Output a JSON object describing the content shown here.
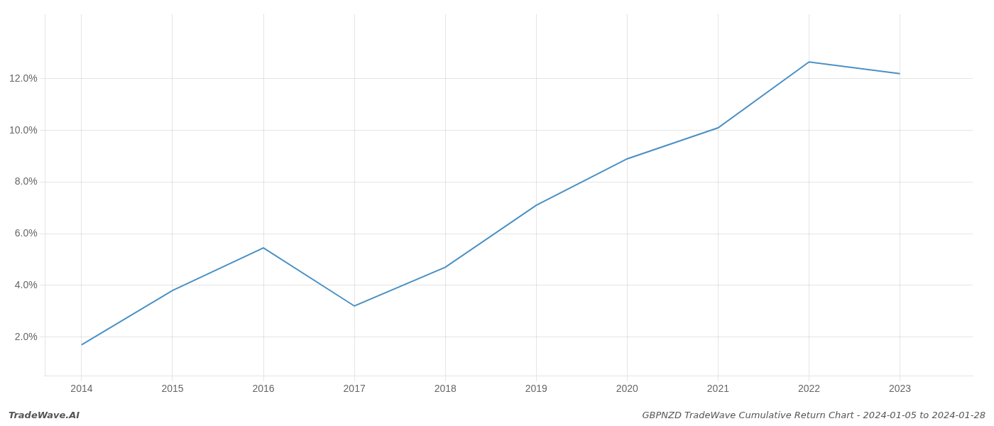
{
  "chart_data": {
    "type": "line",
    "x": [
      2014,
      2015,
      2016,
      2017,
      2018,
      2019,
      2020,
      2021,
      2022,
      2023
    ],
    "values": [
      0.017,
      0.038,
      0.0545,
      0.032,
      0.047,
      0.071,
      0.089,
      0.101,
      0.1265,
      0.122
    ],
    "color": "#4a90c4",
    "xlim": [
      2013.6,
      2023.8
    ],
    "xticks": [
      2014,
      2015,
      2016,
      2017,
      2018,
      2019,
      2020,
      2021,
      2022,
      2023
    ],
    "ylim": [
      0.005,
      0.145
    ],
    "yticks": [
      {
        "value": 0.02,
        "label": "2.0%"
      },
      {
        "value": 0.04,
        "label": "4.0%"
      },
      {
        "value": 0.06,
        "label": "6.0%"
      },
      {
        "value": 0.08,
        "label": "8.0%"
      },
      {
        "value": 0.1,
        "label": "10.0%"
      },
      {
        "value": 0.12,
        "label": "12.0%"
      }
    ],
    "grid": true,
    "annotations": [
      "TradeWave.AI",
      "GBPNZD TradeWave Cumulative Return Chart - 2024-01-05 to 2024-01-28"
    ]
  }
}
